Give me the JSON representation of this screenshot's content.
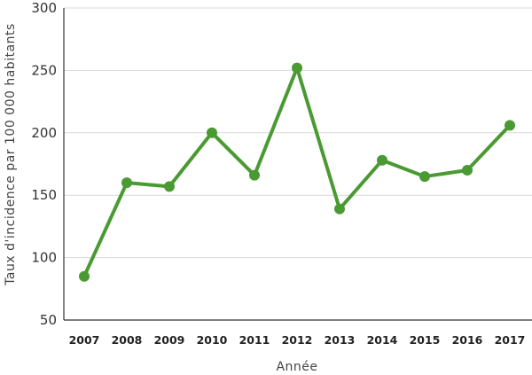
{
  "chart_data": {
    "type": "line",
    "title": "",
    "xlabel": "Année",
    "ylabel": "Taux d'incidence par 100 000 habitants",
    "ylim": [
      50,
      300
    ],
    "yticks": [
      50,
      100,
      150,
      200,
      250,
      300
    ],
    "grid": true,
    "color": "#4a9a33",
    "categories": [
      "2007",
      "2008",
      "2009",
      "2010",
      "2011",
      "2012",
      "2013",
      "2014",
      "2015",
      "2016",
      "2017"
    ],
    "series": [
      {
        "values": [
          85,
          160,
          157,
          200,
          166,
          252,
          139,
          178,
          165,
          170,
          206
        ]
      }
    ]
  }
}
